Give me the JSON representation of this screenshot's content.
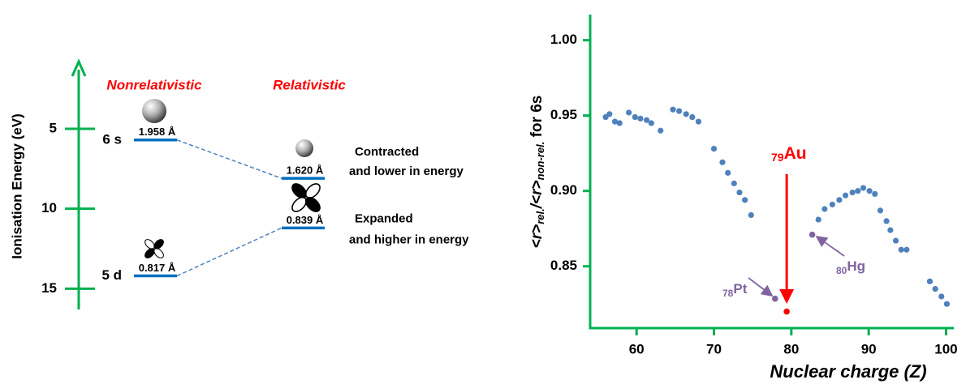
{
  "chart_data": [
    {
      "type": "energy-level",
      "ylabel": "Ionisation Energy (eV)",
      "ylim": [
        1,
        16.3
      ],
      "yticks": [
        5,
        10,
        15
      ],
      "inverted": true,
      "axis_color": "#00b050",
      "level_color": "#0070c0",
      "columns": [
        "Nonrelativistic",
        "Relativistic"
      ],
      "column_color": "#ff0000",
      "levels": [
        {
          "orbital": "6 s",
          "values": [
            5.7,
            8.1
          ],
          "radii": [
            "1.958 Å",
            "1.620 Å"
          ],
          "note": [
            "Contracted",
            "and lower in energy"
          ]
        },
        {
          "orbital": "5 d",
          "values": [
            14.2,
            11.2
          ],
          "radii": [
            "0.817 Å",
            "0.839 Å"
          ],
          "note": [
            "Expanded",
            "and higher in energy"
          ]
        }
      ]
    },
    {
      "type": "scatter",
      "xlabel": "Nuclear charge (Z)",
      "ylabel": [
        "<r>",
        "rel.",
        "/<r>",
        "non-rel.",
        " for 6s"
      ],
      "xlim": [
        54,
        101
      ],
      "ylim": [
        0.809,
        1.017
      ],
      "xticks": [
        60,
        70,
        80,
        90,
        100
      ],
      "yticks": [
        0.85,
        {
          "value": 0.9,
          "label": "0.90"
        },
        0.95,
        {
          "value": 1,
          "label": "1.00"
        }
      ],
      "axis_color": "#00b050",
      "series": [
        {
          "color": "#4f81bd",
          "x": [
            56.0,
            56.5,
            57.2,
            57.8,
            59.0,
            59.8,
            60.5,
            61.3,
            61.9,
            63.1,
            64.7,
            65.5,
            66.4,
            67.2,
            68.0,
            70.0,
            71.1,
            71.8,
            72.6,
            73.3,
            74.0,
            74.8,
            83.5,
            84.3,
            85.3,
            86.2,
            87.0,
            87.9,
            88.6,
            89.3,
            90.1,
            90.8,
            91.5,
            92.3,
            92.8,
            93.5,
            94.2,
            94.9,
            97.9,
            98.6,
            99.4,
            100.1
          ],
          "values": [
            0.949,
            0.951,
            0.946,
            0.945,
            0.952,
            0.949,
            0.948,
            0.947,
            0.945,
            0.94,
            0.954,
            0.953,
            0.951,
            0.949,
            0.946,
            0.928,
            0.919,
            0.912,
            0.905,
            0.899,
            0.894,
            0.884,
            0.881,
            0.888,
            0.891,
            0.894,
            0.897,
            0.899,
            0.9,
            0.902,
            0.9,
            0.898,
            0.887,
            0.88,
            0.874,
            0.867,
            0.861,
            0.861,
            0.84,
            0.835,
            0.83,
            0.825
          ]
        }
      ],
      "highlights": [
        {
          "z": "78",
          "symbol": "Pt",
          "x": 77.9,
          "y": 0.8285,
          "color": "#8064a2"
        },
        {
          "z": "80",
          "symbol": "Hg",
          "x": 82.7,
          "y": 0.871,
          "color": "#8064a2"
        },
        {
          "z": "79",
          "symbol": "Au",
          "x": 79.4,
          "y": 0.82,
          "color": "#ff0000"
        }
      ]
    }
  ]
}
